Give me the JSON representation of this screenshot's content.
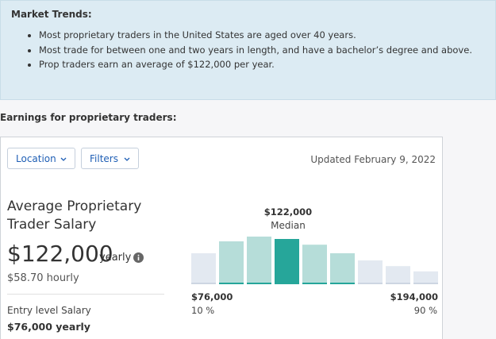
{
  "market_trends": {
    "title": "Market Trends:",
    "items": [
      "Most proprietary traders in the United States are aged over 40 years.",
      "Most trade for between one and two years in length, and have a bachelor’s degree and above.",
      "Prop traders earn an average of $122,000 per year."
    ]
  },
  "earnings": {
    "title": "Earnings for proprietary traders:",
    "filters": [
      "Location",
      "Filters"
    ],
    "updated": "Updated February 9, 2022",
    "salary": {
      "title": "Average Proprietary Trader Salary",
      "amount": "$122,000",
      "period": "yearly",
      "hourly": "$58.70 hourly",
      "entry_label": "Entry level Salary",
      "entry_value": "$76,000 yearly"
    },
    "histogram": {
      "type": "bar",
      "values": [
        65,
        90,
        100,
        95,
        83,
        65,
        50,
        38,
        27
      ],
      "ylim": [
        0,
        100
      ],
      "colors": [
        "#e3e9f1",
        "#b6ddd9",
        "#b6ddd9",
        "#26a69a",
        "#b6ddd9",
        "#b6ddd9",
        "#e3e9f1",
        "#e3e9f1",
        "#e3e9f1"
      ],
      "median_value": "$122,000",
      "median_label": "Median",
      "low_value": "$76,000",
      "low_percentile": "10 %",
      "high_value": "$194,000",
      "high_percentile": "90 %"
    }
  }
}
